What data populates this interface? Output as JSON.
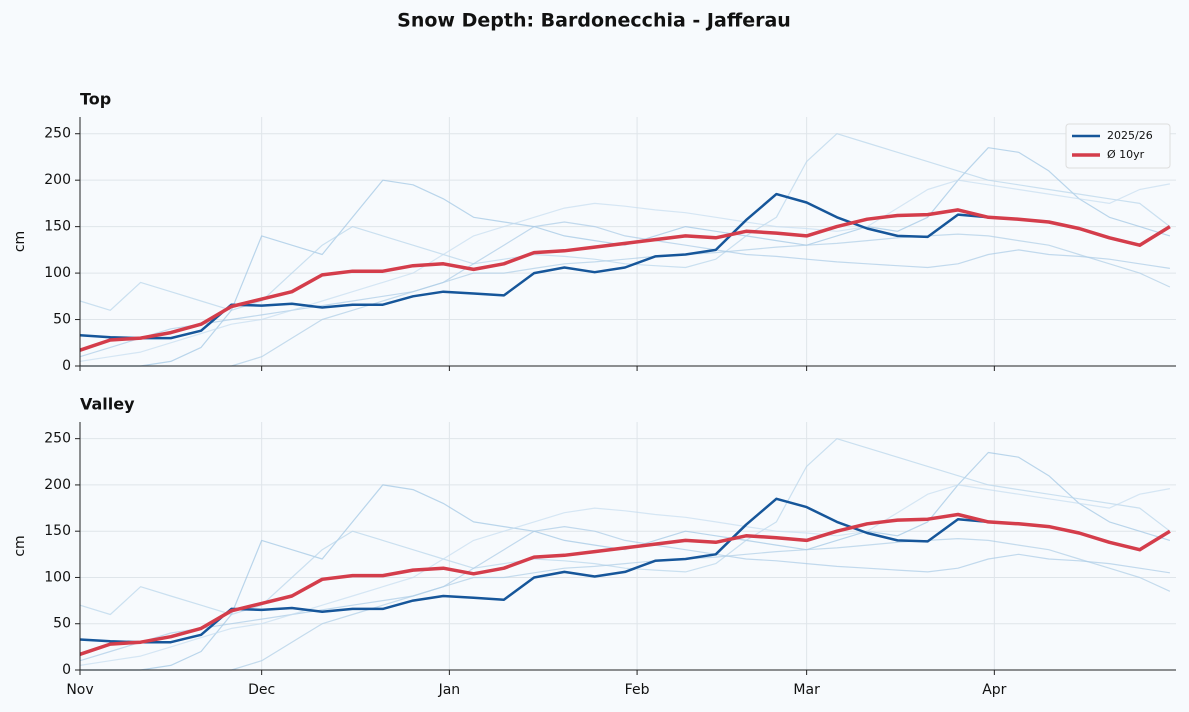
{
  "title": "Snow Depth: Bardonecchia - Jafferau",
  "chart_data": [
    {
      "type": "line",
      "title": "Top",
      "ylabel": "cm",
      "legend": "upper right",
      "grid": true,
      "x": [
        0,
        5,
        10,
        15,
        20,
        25,
        30,
        35,
        40,
        45,
        50,
        55,
        60,
        65,
        70,
        75,
        80,
        85,
        90,
        95,
        100,
        105,
        110,
        115,
        120,
        125,
        130,
        135,
        140,
        145,
        150,
        155,
        160,
        165,
        170,
        175,
        180
      ],
      "xlim": [
        0,
        181
      ],
      "xticks": [
        0,
        30,
        61,
        92,
        120,
        151
      ],
      "ylim": [
        0,
        268
      ],
      "yticks": [
        0,
        50,
        100,
        150,
        200,
        250
      ],
      "background_series": [
        {
          "color": "#9ec5e3",
          "values": [
            0,
            0,
            0,
            5,
            20,
            60,
            140,
            130,
            120,
            160,
            200,
            195,
            180,
            160,
            155,
            150,
            140,
            135,
            130,
            140,
            150,
            145,
            140,
            135,
            130,
            140,
            150,
            145,
            160,
            200,
            235,
            230,
            210,
            180,
            160,
            150,
            140
          ]
        },
        {
          "color": "#b7d4ea",
          "values": [
            70,
            60,
            90,
            80,
            70,
            60,
            70,
            100,
            130,
            150,
            140,
            130,
            120,
            110,
            115,
            120,
            118,
            115,
            110,
            108,
            106,
            115,
            140,
            160,
            220,
            250,
            240,
            230,
            220,
            210,
            200,
            195,
            190,
            185,
            180,
            175,
            150
          ]
        },
        {
          "color": "#a9cbe6",
          "values": [
            10,
            20,
            30,
            40,
            45,
            50,
            55,
            60,
            65,
            70,
            75,
            80,
            90,
            110,
            130,
            150,
            155,
            150,
            140,
            135,
            130,
            125,
            120,
            118,
            115,
            112,
            110,
            108,
            106,
            110,
            120,
            125,
            120,
            118,
            115,
            110,
            105
          ]
        },
        {
          "color": "#c6ddef",
          "values": [
            5,
            10,
            15,
            25,
            35,
            45,
            50,
            60,
            70,
            80,
            90,
            100,
            120,
            140,
            150,
            160,
            170,
            175,
            172,
            168,
            165,
            160,
            155,
            150,
            148,
            145,
            150,
            170,
            190,
            200,
            195,
            190,
            185,
            180,
            175,
            190,
            196
          ]
        },
        {
          "color": "#aecde6",
          "values": [
            0,
            0,
            0,
            0,
            0,
            0,
            10,
            30,
            50,
            60,
            70,
            80,
            90,
            100,
            100,
            105,
            110,
            112,
            115,
            118,
            120,
            122,
            125,
            128,
            130,
            132,
            135,
            138,
            140,
            142,
            140,
            135,
            130,
            120,
            110,
            100,
            85
          ]
        }
      ],
      "series": [
        {
          "name": "2025/26",
          "color": "#16569a",
          "values": [
            33,
            31,
            30,
            30,
            38,
            66,
            65,
            67,
            63,
            66,
            66,
            75,
            80,
            78,
            76,
            100,
            106,
            101,
            106,
            118,
            120,
            125,
            157,
            185,
            176,
            160,
            148,
            140,
            139,
            163,
            160,
            null,
            null,
            null,
            null,
            null,
            null
          ]
        },
        {
          "name": "Ø 10yr",
          "color": "#d43d4b",
          "values": [
            17,
            28,
            30,
            36,
            45,
            64,
            72,
            80,
            98,
            102,
            102,
            108,
            110,
            104,
            110,
            122,
            124,
            128,
            132,
            136,
            140,
            138,
            145,
            143,
            140,
            150,
            158,
            162,
            163,
            168,
            160,
            158,
            155,
            148,
            138,
            130,
            150
          ]
        }
      ]
    },
    {
      "type": "line",
      "title": "Valley",
      "ylabel": "cm",
      "grid": true,
      "x": [
        0,
        5,
        10,
        15,
        20,
        25,
        30,
        35,
        40,
        45,
        50,
        55,
        60,
        65,
        70,
        75,
        80,
        85,
        90,
        95,
        100,
        105,
        110,
        115,
        120,
        125,
        130,
        135,
        140,
        145,
        150,
        155,
        160,
        165,
        170,
        175,
        180
      ],
      "xlim": [
        0,
        181
      ],
      "xticks": [
        {
          "value": 0,
          "label": "Nov"
        },
        {
          "value": 30,
          "label": "Dec"
        },
        {
          "value": 61,
          "label": "Jan"
        },
        {
          "value": 92,
          "label": "Feb"
        },
        {
          "value": 120,
          "label": "Mar"
        },
        {
          "value": 151,
          "label": "Apr"
        }
      ],
      "ylim": [
        0,
        268
      ],
      "yticks": [
        0,
        50,
        100,
        150,
        200,
        250
      ],
      "background_series": [
        {
          "color": "#9ec5e3",
          "values": [
            0,
            0,
            0,
            5,
            20,
            60,
            140,
            130,
            120,
            160,
            200,
            195,
            180,
            160,
            155,
            150,
            140,
            135,
            130,
            140,
            150,
            145,
            140,
            135,
            130,
            140,
            150,
            145,
            160,
            200,
            235,
            230,
            210,
            180,
            160,
            150,
            140
          ]
        },
        {
          "color": "#b7d4ea",
          "values": [
            70,
            60,
            90,
            80,
            70,
            60,
            70,
            100,
            130,
            150,
            140,
            130,
            120,
            110,
            115,
            120,
            118,
            115,
            110,
            108,
            106,
            115,
            140,
            160,
            220,
            250,
            240,
            230,
            220,
            210,
            200,
            195,
            190,
            185,
            180,
            175,
            150
          ]
        },
        {
          "color": "#a9cbe6",
          "values": [
            10,
            20,
            30,
            40,
            45,
            50,
            55,
            60,
            65,
            70,
            75,
            80,
            90,
            110,
            130,
            150,
            155,
            150,
            140,
            135,
            130,
            125,
            120,
            118,
            115,
            112,
            110,
            108,
            106,
            110,
            120,
            125,
            120,
            118,
            115,
            110,
            105
          ]
        },
        {
          "color": "#c6ddef",
          "values": [
            5,
            10,
            15,
            25,
            35,
            45,
            50,
            60,
            70,
            80,
            90,
            100,
            120,
            140,
            150,
            160,
            170,
            175,
            172,
            168,
            165,
            160,
            155,
            150,
            148,
            145,
            150,
            170,
            190,
            200,
            195,
            190,
            185,
            180,
            175,
            190,
            196
          ]
        },
        {
          "color": "#aecde6",
          "values": [
            0,
            0,
            0,
            0,
            0,
            0,
            10,
            30,
            50,
            60,
            70,
            80,
            90,
            100,
            100,
            105,
            110,
            112,
            115,
            118,
            120,
            122,
            125,
            128,
            130,
            132,
            135,
            138,
            140,
            142,
            140,
            135,
            130,
            120,
            110,
            100,
            85
          ]
        }
      ],
      "series": [
        {
          "name": "2025/26",
          "color": "#16569a",
          "values": [
            33,
            31,
            30,
            30,
            38,
            66,
            65,
            67,
            63,
            66,
            66,
            75,
            80,
            78,
            76,
            100,
            106,
            101,
            106,
            118,
            120,
            125,
            157,
            185,
            176,
            160,
            148,
            140,
            139,
            163,
            160,
            null,
            null,
            null,
            null,
            null,
            null
          ]
        },
        {
          "name": "Ø 10yr",
          "color": "#d43d4b",
          "values": [
            17,
            28,
            30,
            36,
            45,
            64,
            72,
            80,
            98,
            102,
            102,
            108,
            110,
            104,
            110,
            122,
            124,
            128,
            132,
            136,
            140,
            138,
            145,
            143,
            140,
            150,
            158,
            162,
            163,
            168,
            160,
            158,
            155,
            148,
            138,
            130,
            150
          ]
        }
      ]
    }
  ]
}
